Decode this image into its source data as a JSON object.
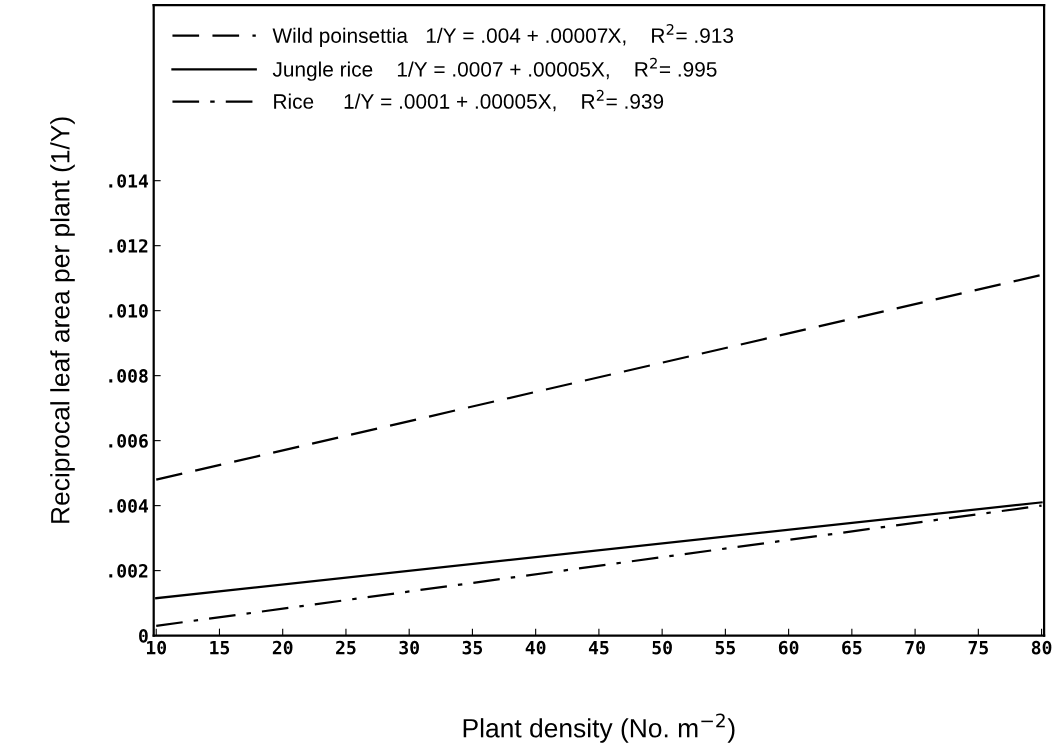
{
  "chart_data": {
    "type": "line",
    "xlabel": "Plant density (No. m$^{−2}$)",
    "ylabel": "Reciprocal leaf area per plant (1/Y)",
    "x": [
      10,
      80
    ],
    "series": [
      {
        "name": "Wild poinsettia   1/Y = .004 + .00007X,    R$^{2}$= .913",
        "color": "#000000",
        "line_style": "dashed",
        "values": [
          0.0048,
          0.0111
        ]
      },
      {
        "name": "Jungle rice    1/Y = .0007 + .00005X,    R$^{2}$= .995",
        "color": "#000000",
        "line_style": "solid",
        "values": [
          0.00115,
          0.0041
        ]
      },
      {
        "name": "Rice     1/Y = .0001 + .00005X,    R$^{2}$= .939",
        "color": "#000000",
        "line_style": "dashdot",
        "values": [
          0.0003,
          0.004
        ]
      }
    ],
    "xlim": [
      9.8,
      80.2
    ],
    "ylim": [
      0,
      0.0194
    ],
    "xticks": [
      10,
      15,
      20,
      25,
      30,
      35,
      40,
      45,
      50,
      55,
      60,
      65,
      70,
      75,
      80
    ],
    "yticks": [
      0,
      {
        "value": 0.002,
        "label": ".002"
      },
      {
        "value": 0.004,
        "label": ".004"
      },
      {
        "value": 0.006,
        "label": ".006"
      },
      {
        "value": 0.008,
        "label": ".008"
      },
      {
        "value": 0.01,
        "label": ".010"
      },
      {
        "value": 0.012,
        "label": ".012"
      },
      {
        "value": 0.014,
        "label": ".014"
      }
    ],
    "grid": false,
    "legend": "top left",
    "marker": "none"
  }
}
